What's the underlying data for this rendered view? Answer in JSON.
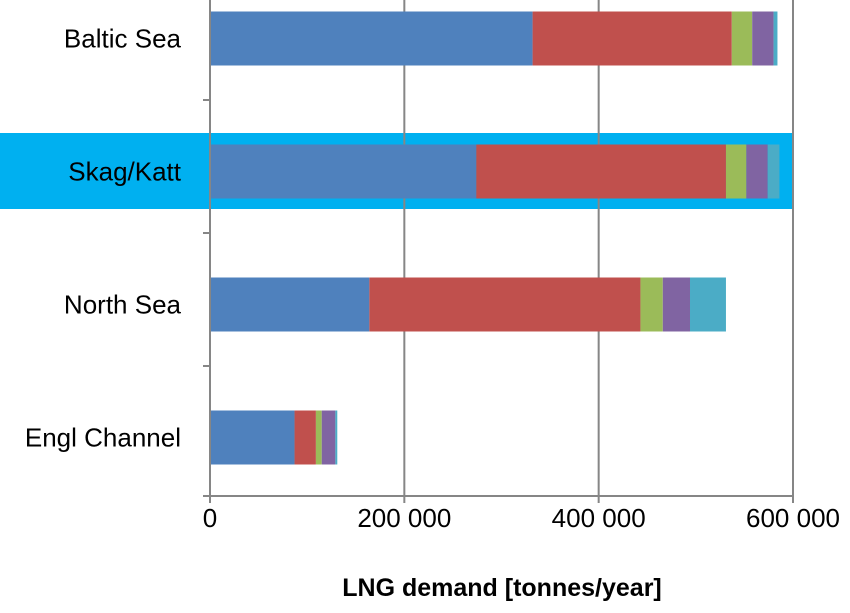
{
  "chart_data": {
    "type": "bar",
    "orientation": "horizontal",
    "stacked": true,
    "title": "",
    "xlabel": "LNG demand [tonnes/year]",
    "ylabel": "",
    "xlim": [
      0,
      600000
    ],
    "x_ticks": [
      0,
      200000,
      400000,
      600000
    ],
    "x_tick_labels": [
      "0",
      "200 000",
      "400 000",
      "600 000"
    ],
    "grid": "vertical major gridlines",
    "legend": "none",
    "highlighted_category": "Skag/Katt",
    "highlight_color": "#00B0F0",
    "categories": [
      "Baltic Sea",
      "Skag/Katt",
      "North Sea",
      "Engl Channel"
    ],
    "series": [
      {
        "color": "#4F81BD",
        "values": [
          332000,
          274000,
          164000,
          87000
        ]
      },
      {
        "color": "#C0504D",
        "values": [
          205000,
          257000,
          279000,
          22000
        ]
      },
      {
        "color": "#9BBB59",
        "values": [
          21000,
          21000,
          23000,
          6000
        ]
      },
      {
        "color": "#8064A2",
        "values": [
          22000,
          22000,
          28000,
          14000
        ]
      },
      {
        "color": "#4BACC6",
        "values": [
          4000,
          12000,
          37000,
          2000
        ]
      }
    ]
  }
}
